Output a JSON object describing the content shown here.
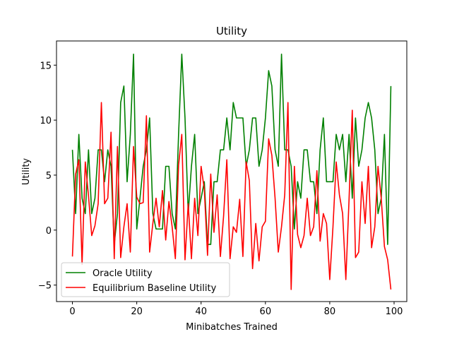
{
  "chart_data": {
    "type": "line",
    "title": "Utility",
    "xlabel": "Minibatches Trained",
    "ylabel": "Utility",
    "xlim": [
      -4.95,
      103.95
    ],
    "ylim": [
      -6.5,
      17.2
    ],
    "xticks": [
      0,
      20,
      40,
      60,
      80,
      100
    ],
    "yticks": [
      -5,
      0,
      5,
      10,
      15
    ],
    "grid": false,
    "legend_position": "lower-left",
    "series": [
      {
        "name": "Oracle Utility",
        "color": "#008000",
        "values": [
          7.3,
          1.5,
          8.7,
          2.9,
          1.5,
          7.3,
          1.5,
          2.9,
          7.3,
          7.3,
          4.4,
          7.3,
          5.8,
          -1.3,
          1.5,
          11.6,
          13.1,
          4.4,
          8.7,
          16.0,
          0.1,
          2.9,
          5.8,
          7.3,
          10.2,
          1.5,
          0.1,
          0.1,
          0.1,
          5.8,
          5.8,
          1.5,
          0.1,
          8.7,
          16.0,
          10.2,
          1.5,
          5.8,
          8.7,
          1.5,
          2.9,
          4.4,
          -1.3,
          -1.3,
          4.4,
          4.4,
          7.3,
          7.3,
          10.2,
          7.3,
          11.6,
          10.2,
          10.2,
          10.2,
          5.8,
          7.3,
          10.2,
          10.2,
          5.8,
          7.3,
          10.2,
          14.5,
          13.1,
          7.3,
          5.8,
          16.0,
          7.3,
          7.3,
          5.8,
          0.1,
          4.4,
          2.9,
          7.3,
          7.3,
          4.4,
          4.4,
          1.5,
          7.3,
          10.2,
          4.4,
          4.4,
          4.4,
          8.7,
          7.3,
          8.7,
          4.4,
          8.7,
          2.9,
          10.2,
          5.8,
          7.3,
          10.2,
          11.6,
          10.2,
          7.3,
          1.5,
          2.9,
          8.7,
          -1.3,
          13.1
        ]
      },
      {
        "name": "Equilibrium Baseline Utility",
        "color": "#ff0000",
        "values": [
          -2.4,
          5.1,
          6.4,
          -3.1,
          6.2,
          3.1,
          -0.5,
          0.4,
          2.4,
          11.6,
          2.4,
          2.9,
          8.9,
          -2.6,
          7.6,
          -2.5,
          0.3,
          2.4,
          -2.0,
          7.6,
          3.0,
          2.4,
          2.5,
          10.4,
          -2.0,
          0.6,
          2.9,
          0.3,
          3.6,
          -0.9,
          2.6,
          0.3,
          -2.6,
          5.9,
          8.7,
          -2.7,
          2.4,
          -2.6,
          2.9,
          -0.5,
          5.8,
          3.7,
          -2.3,
          5.1,
          -0.2,
          3.2,
          -2.4,
          1.3,
          6.4,
          -2.6,
          0.3,
          -0.2,
          2.8,
          -2.4,
          6.2,
          4.5,
          -3.5,
          0.6,
          -2.8,
          0.3,
          0.8,
          8.3,
          6.8,
          2.9,
          -2.0,
          0.3,
          3.2,
          11.6,
          -5.4,
          5.8,
          -0.4,
          -1.6,
          -0.5,
          2.9,
          -0.5,
          0.3,
          5.4,
          -1.0,
          1.5,
          0.6,
          -4.5,
          0.3,
          6.2,
          3.2,
          1.5,
          -4.5,
          2.8,
          10.9,
          -2.5,
          -2.0,
          4.4,
          0.6,
          5.8,
          -1.6,
          0.3,
          5.8,
          2.9,
          -1.5,
          -2.7,
          -5.4
        ]
      }
    ]
  }
}
